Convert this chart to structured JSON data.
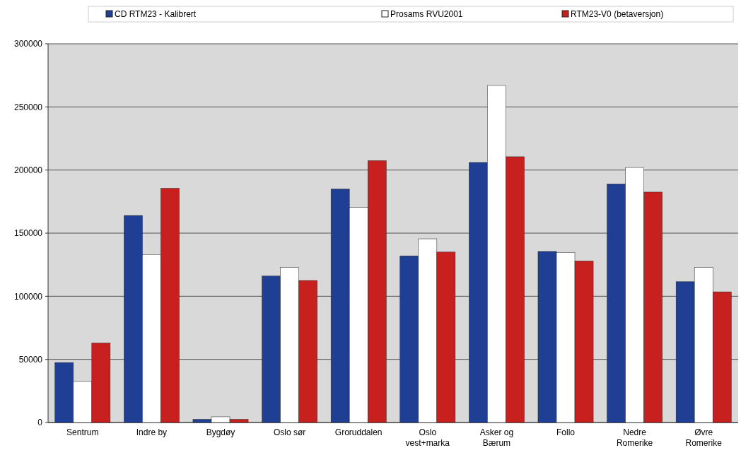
{
  "chart_data": {
    "type": "bar",
    "categories": [
      "Sentrum",
      "Indre by",
      "Bygdøy",
      "Oslo sør",
      "Groruddalen",
      "Oslo\nvest+marka",
      "Asker og\nBærum",
      "Follo",
      "Nedre\nRomerike",
      "Øvre\nRomerike"
    ],
    "series": [
      {
        "name": "CD RTM23 - Kalibrert",
        "color": "#1f3f94",
        "values": [
          47500,
          164000,
          2500,
          116000,
          185000,
          132000,
          206000,
          135500,
          189000,
          111500
        ]
      },
      {
        "name": "Prosams RVU2001",
        "color": "#ffffff",
        "values": [
          32500,
          133000,
          4500,
          123000,
          170500,
          145500,
          267000,
          134500,
          202000,
          123000
        ]
      },
      {
        "name": "RTM23-V0 (betaversjon)",
        "color": "#c8201f",
        "values": [
          63000,
          185500,
          2500,
          112500,
          207500,
          135000,
          210500,
          128000,
          182500,
          103500
        ]
      }
    ],
    "ylim": [
      0,
      300000
    ],
    "yticks": [
      0,
      50000,
      100000,
      150000,
      200000,
      250000,
      300000
    ],
    "grid": "y",
    "legend": "top"
  }
}
